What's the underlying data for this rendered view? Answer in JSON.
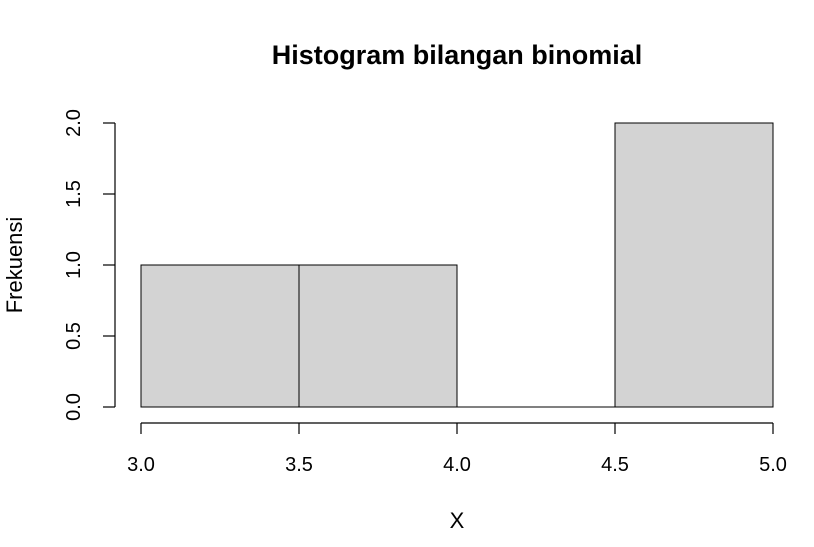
{
  "chart_data": {
    "type": "bar",
    "title": "Histogram bilangan binomial",
    "xlabel": "X",
    "ylabel": "Frekuensi",
    "bins": [
      {
        "start": 3.0,
        "end": 3.5,
        "value": 1
      },
      {
        "start": 3.5,
        "end": 4.0,
        "value": 1
      },
      {
        "start": 4.0,
        "end": 4.5,
        "value": 0
      },
      {
        "start": 4.5,
        "end": 5.0,
        "value": 2
      }
    ],
    "xticks": [
      "3.0",
      "3.5",
      "4.0",
      "4.5",
      "5.0"
    ],
    "yticks": [
      "0.0",
      "0.5",
      "1.0",
      "1.5",
      "2.0"
    ],
    "xlim": [
      3.0,
      5.0
    ],
    "ylim": [
      0,
      2.0
    ],
    "grid": false,
    "bar_color": "#d3d3d3",
    "edge_color": "#000000"
  }
}
